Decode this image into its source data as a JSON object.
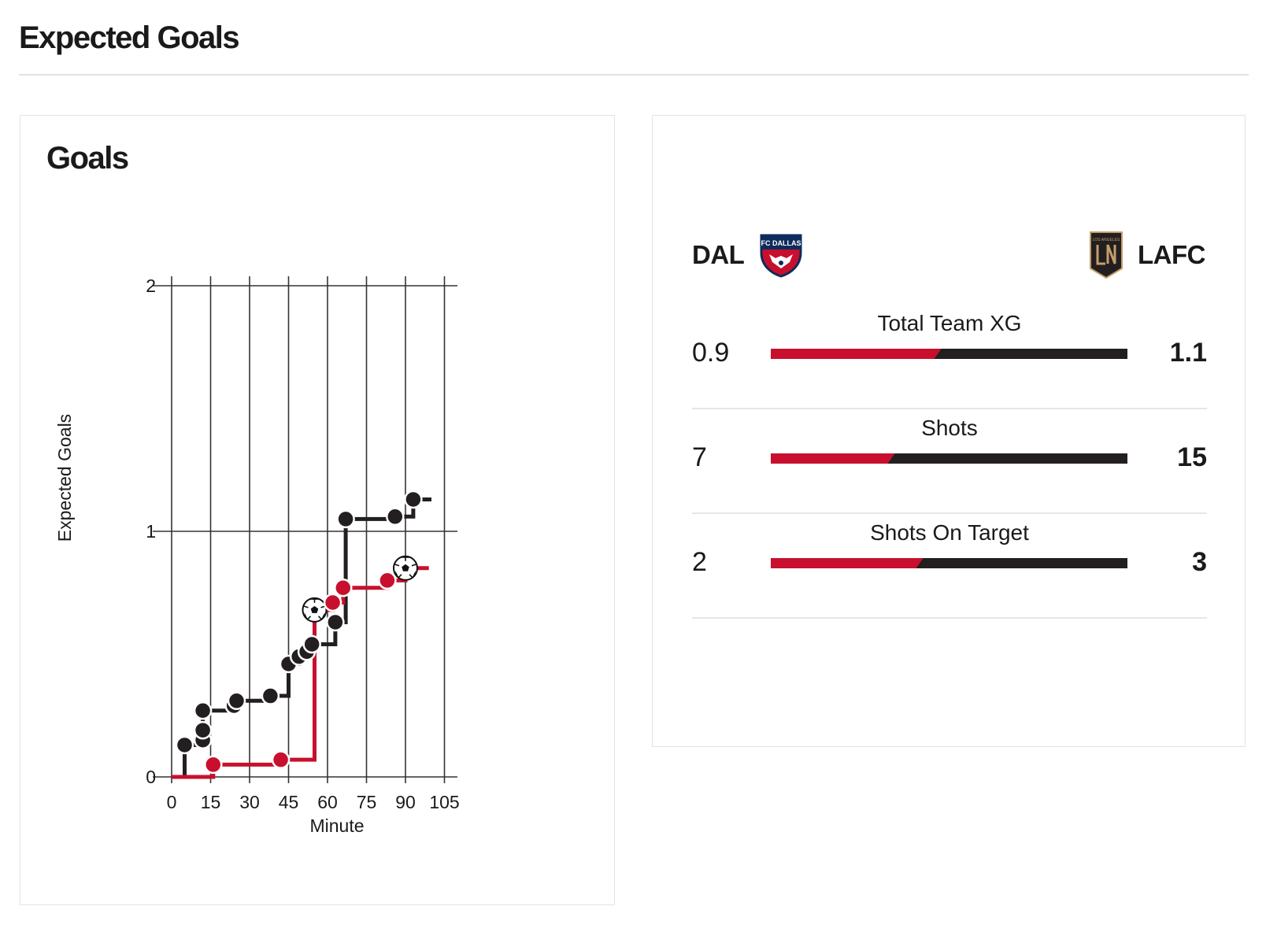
{
  "page": {
    "title": "Expected Goals"
  },
  "goals_card": {
    "title": "Goals"
  },
  "chart_data": {
    "type": "line",
    "step": true,
    "xlabel": "Minute",
    "ylabel": "Expected Goals",
    "xlim": [
      0,
      110
    ],
    "ylim": [
      0,
      2
    ],
    "x_ticks": [
      0,
      15,
      30,
      45,
      60,
      75,
      90,
      105
    ],
    "y_ticks": [
      0,
      1,
      2
    ],
    "grid": true,
    "series": [
      {
        "team": "LAFC",
        "color": "#231f20",
        "end_minute": 100,
        "shots": [
          {
            "minute": 5,
            "xg": 0.13,
            "goal": false
          },
          {
            "minute": 12,
            "xg": 0.15,
            "goal": false
          },
          {
            "minute": 12,
            "xg": 0.19,
            "goal": false
          },
          {
            "minute": 12,
            "xg": 0.27,
            "goal": false
          },
          {
            "minute": 24,
            "xg": 0.29,
            "goal": false
          },
          {
            "minute": 25,
            "xg": 0.31,
            "goal": false
          },
          {
            "minute": 38,
            "xg": 0.33,
            "goal": false
          },
          {
            "minute": 45,
            "xg": 0.46,
            "goal": false
          },
          {
            "minute": 49,
            "xg": 0.49,
            "goal": false
          },
          {
            "minute": 52,
            "xg": 0.51,
            "goal": false
          },
          {
            "minute": 54,
            "xg": 0.54,
            "goal": false
          },
          {
            "minute": 63,
            "xg": 0.63,
            "goal": false
          },
          {
            "minute": 67,
            "xg": 1.05,
            "goal": false
          },
          {
            "minute": 86,
            "xg": 1.06,
            "goal": false
          },
          {
            "minute": 93,
            "xg": 1.13,
            "goal": false
          }
        ]
      },
      {
        "team": "DAL",
        "color": "#c8102e",
        "end_minute": 99,
        "shots": [
          {
            "minute": 16,
            "xg": 0.05,
            "goal": false
          },
          {
            "minute": 42,
            "xg": 0.07,
            "goal": false
          },
          {
            "minute": 55,
            "xg": 0.68,
            "goal": true
          },
          {
            "minute": 62,
            "xg": 0.71,
            "goal": false
          },
          {
            "minute": 66,
            "xg": 0.77,
            "goal": false
          },
          {
            "minute": 83,
            "xg": 0.8,
            "goal": false
          },
          {
            "minute": 90,
            "xg": 0.85,
            "goal": true
          }
        ]
      }
    ]
  },
  "summary": {
    "home": {
      "abbr": "DAL",
      "logo_text": "FC DALLAS",
      "color": "#c8102e"
    },
    "away": {
      "abbr": "LAFC",
      "logo_text": "LOS ANGELES",
      "color": "#231f20"
    },
    "stats": [
      {
        "label": "Total Team XG",
        "home": "0.9",
        "away": "1.1",
        "home_share": 0.45
      },
      {
        "label": "Shots",
        "home": "7",
        "away": "15",
        "home_share": 0.32
      },
      {
        "label": "Shots On Target",
        "home": "2",
        "away": "3",
        "home_share": 0.4
      }
    ]
  }
}
